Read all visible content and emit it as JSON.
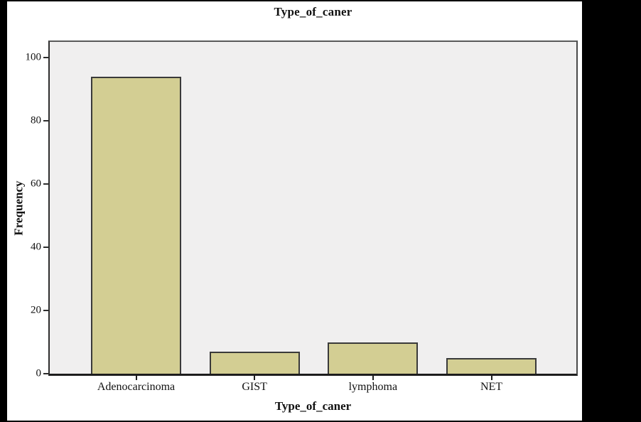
{
  "chart_data": {
    "type": "bar",
    "title": "Type_of_caner",
    "xlabel": "Type_of_caner",
    "ylabel": "Frequency",
    "categories": [
      "Adenocarcinoma",
      "GIST",
      "lymphoma",
      "NET"
    ],
    "values": [
      94,
      7,
      10,
      5
    ],
    "ylim": [
      0,
      105
    ],
    "yticks": [
      0,
      20,
      40,
      60,
      80,
      100
    ],
    "grid": false,
    "legend": "none",
    "colors": {
      "bar_fill": "#d3ce93",
      "bar_border": "#3a3a3a",
      "plot_background": "#f0efef",
      "figure_background": "#ffffff",
      "surround_background": "#000000",
      "text": "#111111"
    }
  }
}
